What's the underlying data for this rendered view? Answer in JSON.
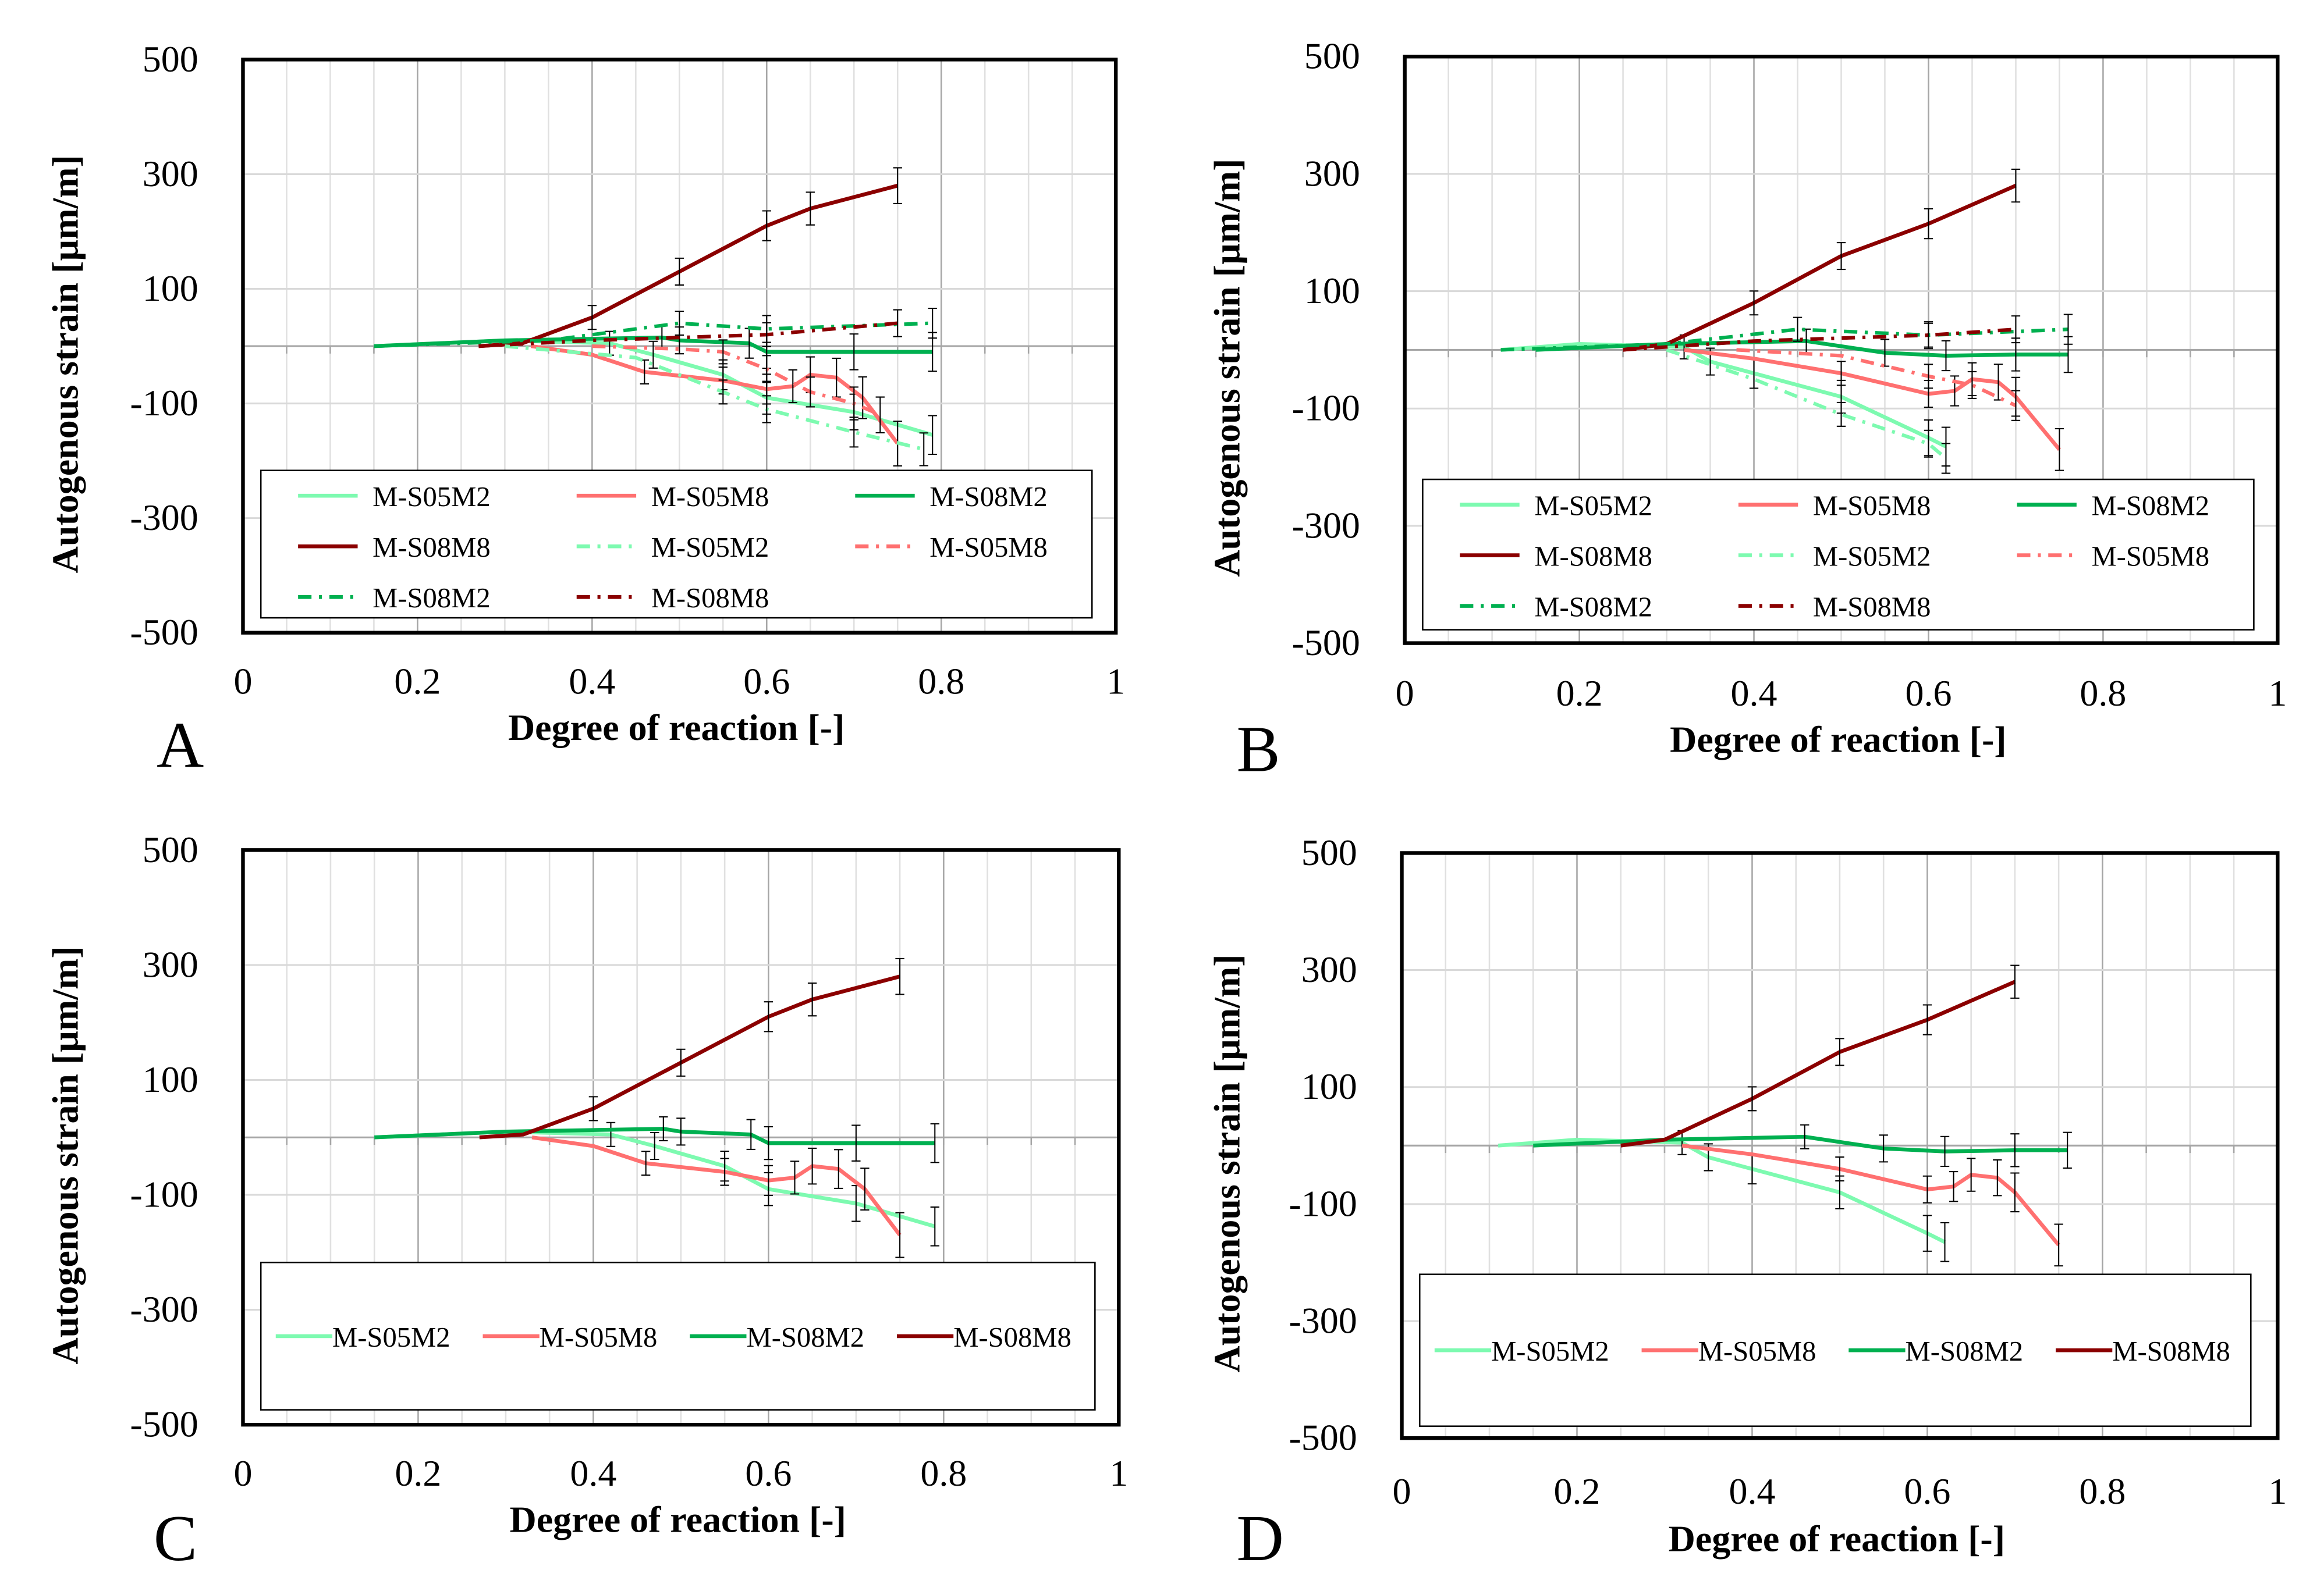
{
  "chart_data": [
    {
      "panel": "A",
      "type": "line",
      "xlabel": "Degree of reaction [-]",
      "ylabel": "Autogenous strain [µm/m]",
      "xlim": [
        0,
        1
      ],
      "ylim": [
        -500,
        500
      ],
      "xticks": [
        "0",
        "0.2",
        "0.4",
        "0.6",
        "0.8",
        "1"
      ],
      "yticks": [
        "500",
        "300",
        "100",
        "-100",
        "-300",
        "-500"
      ],
      "legend_placement": "bottom-inside",
      "legend_columns": 3,
      "series": [
        {
          "name": "M-S05M2",
          "style": "solid",
          "color": "#7dfab0",
          "x": [
            0.15,
            0.3,
            0.42,
            0.47,
            0.55,
            0.6,
            0.7,
            0.79
          ],
          "y": [
            0,
            10,
            5,
            -15,
            -50,
            -90,
            -115,
            -155
          ]
        },
        {
          "name": "M-S05M8",
          "style": "solid",
          "color": "#ff7070",
          "x": [
            0.33,
            0.4,
            0.46,
            0.55,
            0.6,
            0.63,
            0.65,
            0.68,
            0.71,
            0.75
          ],
          "y": [
            0,
            -15,
            -45,
            -60,
            -75,
            -70,
            -50,
            -55,
            -90,
            -170
          ]
        },
        {
          "name": "M-S08M2",
          "style": "solid",
          "color": "#00b050",
          "x": [
            0.15,
            0.3,
            0.48,
            0.5,
            0.58,
            0.6,
            0.7,
            0.79
          ],
          "y": [
            0,
            10,
            15,
            10,
            5,
            -10,
            -10,
            -10
          ]
        },
        {
          "name": "M-S08M8",
          "style": "solid",
          "color": "#8b0000",
          "x": [
            0.27,
            0.32,
            0.4,
            0.5,
            0.6,
            0.65,
            0.75
          ],
          "y": [
            0,
            5,
            50,
            130,
            210,
            240,
            280
          ]
        },
        {
          "name": "M-S05M2",
          "style": "dashdot",
          "color": "#7dfab0",
          "x": [
            0.3,
            0.45,
            0.55,
            0.6,
            0.7,
            0.78
          ],
          "y": [
            0,
            -20,
            -80,
            -110,
            -150,
            -180
          ]
        },
        {
          "name": "M-S05M8",
          "style": "dashdot",
          "color": "#ff7070",
          "x": [
            0.4,
            0.5,
            0.55,
            0.6,
            0.65,
            0.7,
            0.73
          ],
          "y": [
            0,
            -5,
            -10,
            -40,
            -80,
            -100,
            -120
          ]
        },
        {
          "name": "M-S08M2",
          "style": "dashdot",
          "color": "#00b050",
          "x": [
            0.15,
            0.35,
            0.5,
            0.6,
            0.79
          ],
          "y": [
            0,
            10,
            40,
            30,
            40
          ]
        },
        {
          "name": "M-S08M8",
          "style": "dashdot",
          "color": "#8b0000",
          "x": [
            0.27,
            0.4,
            0.6,
            0.75
          ],
          "y": [
            0,
            10,
            20,
            40
          ]
        }
      ]
    },
    {
      "panel": "B",
      "type": "line",
      "xlabel": "Degree of reaction [-]",
      "ylabel": "Autogenous strain [µm/m]",
      "xlim": [
        0,
        1
      ],
      "ylim": [
        -500,
        500
      ],
      "xticks": [
        "0",
        "0.2",
        "0.4",
        "0.6",
        "0.8",
        "1"
      ],
      "yticks": [
        "500",
        "300",
        "100",
        "-100",
        "-300",
        "-500"
      ],
      "legend_placement": "bottom-inside",
      "legend_columns": 3,
      "series": [
        {
          "name": "M-S05M2",
          "style": "solid",
          "color": "#7dfab0",
          "x": [
            0.11,
            0.2,
            0.32,
            0.35,
            0.4,
            0.5,
            0.6,
            0.62
          ],
          "y": [
            0,
            10,
            5,
            -20,
            -40,
            -80,
            -150,
            -165
          ]
        },
        {
          "name": "M-S05M8",
          "style": "solid",
          "color": "#ff7070",
          "x": [
            0.32,
            0.4,
            0.5,
            0.6,
            0.63,
            0.65,
            0.68,
            0.7,
            0.75
          ],
          "y": [
            0,
            -15,
            -40,
            -75,
            -70,
            -50,
            -55,
            -80,
            -170
          ]
        },
        {
          "name": "M-S08M2",
          "style": "solid",
          "color": "#00b050",
          "x": [
            0.15,
            0.3,
            0.46,
            0.55,
            0.62,
            0.7,
            0.76
          ],
          "y": [
            0,
            10,
            15,
            -5,
            -10,
            -8,
            -8
          ]
        },
        {
          "name": "M-S08M8",
          "style": "solid",
          "color": "#8b0000",
          "x": [
            0.25,
            0.3,
            0.4,
            0.5,
            0.6,
            0.7
          ],
          "y": [
            0,
            10,
            80,
            160,
            215,
            280
          ]
        },
        {
          "name": "M-S05M2",
          "style": "dashdot",
          "color": "#7dfab0",
          "x": [
            0.3,
            0.4,
            0.5,
            0.6,
            0.62
          ],
          "y": [
            0,
            -50,
            -110,
            -160,
            -185
          ]
        },
        {
          "name": "M-S05M8",
          "style": "dashdot",
          "color": "#ff7070",
          "x": [
            0.38,
            0.5,
            0.6,
            0.65,
            0.7
          ],
          "y": [
            0,
            -10,
            -45,
            -60,
            -95
          ]
        },
        {
          "name": "M-S08M2",
          "style": "dashdot",
          "color": "#00b050",
          "x": [
            0.11,
            0.3,
            0.45,
            0.6,
            0.76
          ],
          "y": [
            0,
            10,
            35,
            25,
            35
          ]
        },
        {
          "name": "M-S08M8",
          "style": "dashdot",
          "color": "#8b0000",
          "x": [
            0.25,
            0.4,
            0.6,
            0.7
          ],
          "y": [
            0,
            15,
            25,
            35
          ]
        }
      ]
    },
    {
      "panel": "C",
      "type": "line",
      "xlabel": "Degree of reaction [-]",
      "ylabel": "Autogenous strain [µm/m]",
      "xlim": [
        0,
        1
      ],
      "ylim": [
        -500,
        500
      ],
      "xticks": [
        "0",
        "0.2",
        "0.4",
        "0.6",
        "0.8",
        "1"
      ],
      "yticks": [
        "500",
        "300",
        "100",
        "-100",
        "-300",
        "-500"
      ],
      "legend_placement": "bottom-inside",
      "legend_columns": 4,
      "series": [
        {
          "name": "M-S05M2",
          "style": "solid",
          "color": "#7dfab0",
          "x": [
            0.15,
            0.3,
            0.42,
            0.47,
            0.55,
            0.6,
            0.7,
            0.79
          ],
          "y": [
            0,
            10,
            5,
            -15,
            -50,
            -90,
            -115,
            -155
          ]
        },
        {
          "name": "M-S05M8",
          "style": "solid",
          "color": "#ff7070",
          "x": [
            0.33,
            0.4,
            0.46,
            0.55,
            0.6,
            0.63,
            0.65,
            0.68,
            0.71,
            0.75
          ],
          "y": [
            0,
            -15,
            -45,
            -60,
            -75,
            -70,
            -50,
            -55,
            -90,
            -170
          ]
        },
        {
          "name": "M-S08M2",
          "style": "solid",
          "color": "#00b050",
          "x": [
            0.15,
            0.3,
            0.48,
            0.5,
            0.58,
            0.6,
            0.7,
            0.79
          ],
          "y": [
            0,
            10,
            15,
            10,
            5,
            -10,
            -10,
            -10
          ]
        },
        {
          "name": "M-S08M8",
          "style": "solid",
          "color": "#8b0000",
          "x": [
            0.27,
            0.32,
            0.4,
            0.5,
            0.6,
            0.65,
            0.75
          ],
          "y": [
            0,
            5,
            50,
            130,
            210,
            240,
            280
          ]
        }
      ]
    },
    {
      "panel": "D",
      "type": "line",
      "xlabel": "Degree of reaction [-]",
      "ylabel": "Autogenous strain [µm/m]",
      "xlim": [
        0,
        1
      ],
      "ylim": [
        -500,
        500
      ],
      "xticks": [
        "0",
        "0.2",
        "0.4",
        "0.6",
        "0.8",
        "1"
      ],
      "yticks": [
        "500",
        "300",
        "100",
        "-100",
        "-300",
        "-500"
      ],
      "legend_placement": "bottom-inside",
      "legend_columns": 4,
      "series": [
        {
          "name": "M-S05M2",
          "style": "solid",
          "color": "#7dfab0",
          "x": [
            0.11,
            0.2,
            0.32,
            0.35,
            0.4,
            0.5,
            0.6,
            0.62
          ],
          "y": [
            0,
            10,
            5,
            -20,
            -40,
            -80,
            -150,
            -165
          ]
        },
        {
          "name": "M-S05M8",
          "style": "solid",
          "color": "#ff7070",
          "x": [
            0.32,
            0.4,
            0.5,
            0.6,
            0.63,
            0.65,
            0.68,
            0.7,
            0.75
          ],
          "y": [
            0,
            -15,
            -40,
            -75,
            -70,
            -50,
            -55,
            -80,
            -170
          ]
        },
        {
          "name": "M-S08M2",
          "style": "solid",
          "color": "#00b050",
          "x": [
            0.15,
            0.3,
            0.46,
            0.55,
            0.62,
            0.7,
            0.76
          ],
          "y": [
            0,
            10,
            15,
            -5,
            -10,
            -8,
            -8
          ]
        },
        {
          "name": "M-S08M8",
          "style": "solid",
          "color": "#8b0000",
          "x": [
            0.25,
            0.3,
            0.4,
            0.5,
            0.6,
            0.7
          ],
          "y": [
            0,
            10,
            80,
            160,
            215,
            280
          ]
        }
      ]
    }
  ]
}
